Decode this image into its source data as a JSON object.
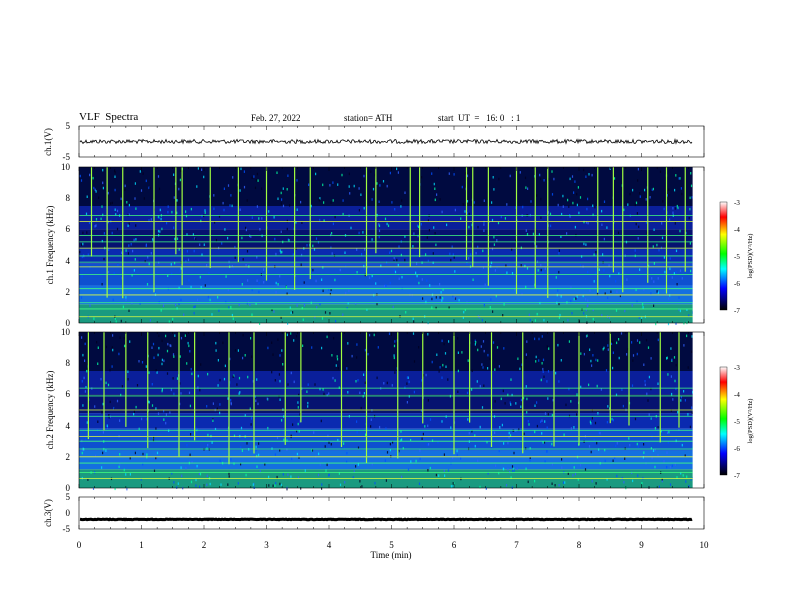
{
  "header": {
    "title": "VLF  Spectra",
    "date": "Feb. 27, 2022",
    "station": "station= ATH",
    "start": "start  UT  =   16: 0   : 1"
  },
  "chart_data": [
    {
      "type": "line",
      "name": "ch1-waveform",
      "ylabel": "ch.1(V)",
      "ylim": [
        -5,
        5
      ],
      "yticks": [
        "5",
        "-5"
      ],
      "trace_level": 0,
      "trace_color": "#000000"
    },
    {
      "type": "heatmap",
      "name": "ch1-spectrogram",
      "ylabel": "ch.1 Frequency (kHz)",
      "ylim": [
        0,
        10
      ],
      "yticks": [
        "0",
        "2",
        "4",
        "6",
        "8",
        "10"
      ],
      "band_lines_khz": [
        0.4,
        0.9,
        1.3,
        1.8,
        2.2,
        3.1,
        3.6,
        3.9,
        4.3,
        4.8,
        5.2,
        5.6,
        6.5,
        6.9
      ],
      "sferic_minutes": [
        0.2,
        0.45,
        0.7,
        1.2,
        1.55,
        1.65,
        2.1,
        2.55,
        3.0,
        3.45,
        3.7,
        4.6,
        4.75,
        5.3,
        5.45,
        6.2,
        6.3,
        6.55,
        7.0,
        7.3,
        7.5,
        8.3,
        8.55,
        8.7,
        9.1,
        9.4,
        9.7
      ],
      "colorbar": {
        "label": "log(PSD)(V²/Hz)",
        "ticks": [
          "-3",
          "-4",
          "-5",
          "-6",
          "-7"
        ],
        "range": [
          -7,
          -3
        ],
        "colors": [
          "#ffffff",
          "#ff0000",
          "#ffff00",
          "#00ff00",
          "#00ffff",
          "#0000ff",
          "#000000"
        ]
      }
    },
    {
      "type": "heatmap",
      "name": "ch2-spectrogram",
      "ylabel": "ch.2 Frequency (kHz)",
      "ylim": [
        0,
        10
      ],
      "yticks": [
        "0",
        "2",
        "4",
        "6",
        "8",
        "10"
      ],
      "band_lines_khz": [
        0.6,
        1.0,
        1.6,
        2.0,
        2.5,
        3.0,
        3.3,
        3.7,
        4.6,
        5.0,
        5.9,
        6.4
      ],
      "sferic_minutes": [
        0.15,
        0.4,
        0.75,
        1.1,
        1.6,
        1.85,
        2.4,
        2.8,
        3.3,
        3.55,
        4.2,
        4.6,
        5.1,
        5.5,
        6.0,
        6.25,
        6.6,
        7.1,
        7.6,
        8.0,
        8.5,
        8.8,
        9.3,
        9.6
      ],
      "colorbar": {
        "label": "log(PSD)(V²/Hz)",
        "ticks": [
          "-3",
          "-4",
          "-5",
          "-6",
          "-7"
        ],
        "range": [
          -7,
          -3
        ],
        "colors": [
          "#ffffff",
          "#ff0000",
          "#ffff00",
          "#00ff00",
          "#00ffff",
          "#0000ff",
          "#000000"
        ]
      }
    },
    {
      "type": "line",
      "name": "ch3-waveform",
      "ylabel": "ch.3(V)",
      "ylim": [
        -5,
        5
      ],
      "yticks": [
        "5",
        "0",
        "-5"
      ],
      "trace_level": -2,
      "trace_color": "#000000"
    }
  ],
  "xaxis": {
    "label": "Time  (min)",
    "xlim": [
      0,
      10
    ],
    "ticks": [
      "0",
      "1",
      "2",
      "3",
      "4",
      "5",
      "6",
      "7",
      "8",
      "9",
      "10"
    ],
    "data_end_min": 9.82
  }
}
